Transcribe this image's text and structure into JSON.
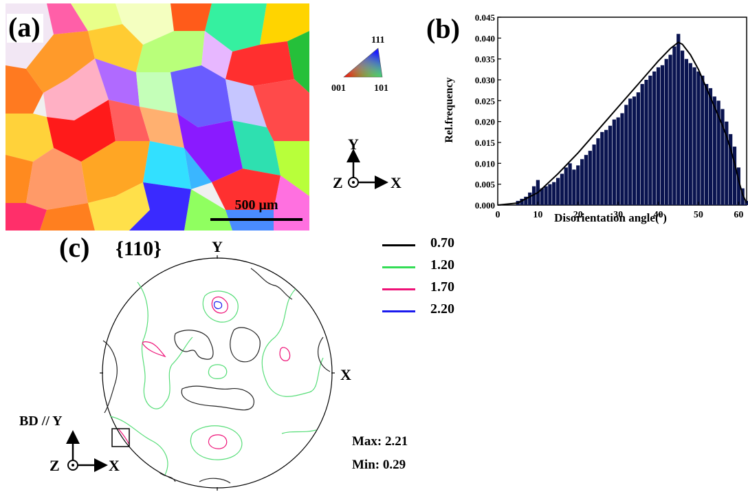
{
  "panel_a": {
    "label": "(a)",
    "scalebar": "500 μm",
    "ipf_key": {
      "top": "111",
      "left": "001",
      "right": "101"
    },
    "axes": {
      "y": "Y",
      "z": "Z",
      "x": "X"
    }
  },
  "panel_b": {
    "label": "(b)"
  },
  "panel_c": {
    "label": "(c)",
    "title": "{110}",
    "pole_labels": {
      "y": "Y",
      "x": "X"
    },
    "legend": [
      {
        "value": "0.70",
        "color": "#000000"
      },
      {
        "value": "1.20",
        "color": "#33dd55"
      },
      {
        "value": "1.70",
        "color": "#ee1177"
      },
      {
        "value": "2.20",
        "color": "#1a1aee"
      }
    ],
    "max": "Max: 2.21",
    "min": "Min: 0.29",
    "axes": {
      "bd": "BD // Y",
      "z": "Z",
      "x": "X"
    }
  },
  "chart_data": {
    "type": "bar",
    "xlabel": "Disorientation angle(º)",
    "ylabel": "Rel.frequency",
    "xlim": [
      0,
      62
    ],
    "ylim": [
      0,
      0.045
    ],
    "xticks": [
      "0",
      "10",
      "20",
      "30",
      "40",
      "50",
      "60"
    ],
    "yticks": [
      "0.000",
      "0.005",
      "0.010",
      "0.015",
      "0.020",
      "0.025",
      "0.030",
      "0.035",
      "0.040",
      "0.045"
    ],
    "bar_color": "#0a1450",
    "x": [
      5,
      6,
      7,
      8,
      9,
      10,
      11,
      12,
      13,
      14,
      15,
      16,
      17,
      18,
      19,
      20,
      21,
      22,
      23,
      24,
      25,
      26,
      27,
      28,
      29,
      30,
      31,
      32,
      33,
      34,
      35,
      36,
      37,
      38,
      39,
      40,
      41,
      42,
      43,
      44,
      45,
      46,
      47,
      48,
      49,
      50,
      51,
      52,
      53,
      54,
      55,
      56,
      57,
      58,
      59,
      60,
      61,
      62
    ],
    "values": [
      0.001,
      0.0015,
      0.002,
      0.003,
      0.0045,
      0.006,
      0.004,
      0.0045,
      0.005,
      0.0055,
      0.0065,
      0.0075,
      0.009,
      0.01,
      0.0085,
      0.0095,
      0.011,
      0.012,
      0.013,
      0.0145,
      0.016,
      0.0175,
      0.018,
      0.019,
      0.0205,
      0.021,
      0.022,
      0.024,
      0.0255,
      0.026,
      0.027,
      0.029,
      0.03,
      0.031,
      0.032,
      0.033,
      0.0335,
      0.035,
      0.036,
      0.038,
      0.041,
      0.037,
      0.035,
      0.034,
      0.033,
      0.032,
      0.031,
      0.029,
      0.028,
      0.026,
      0.025,
      0.023,
      0.02,
      0.017,
      0.014,
      0.009,
      0.004,
      0.001
    ],
    "fit": {
      "type": "line",
      "x": [
        0,
        5,
        10,
        15,
        20,
        25,
        30,
        35,
        40,
        43,
        45,
        46,
        48,
        50,
        52,
        54,
        56,
        57,
        58,
        59,
        60,
        61,
        62
      ],
      "y": [
        0,
        0.0005,
        0.003,
        0.0075,
        0.0125,
        0.018,
        0.0235,
        0.029,
        0.0345,
        0.0375,
        0.039,
        0.0385,
        0.036,
        0.0325,
        0.028,
        0.0235,
        0.019,
        0.0165,
        0.0135,
        0.01,
        0.006,
        0.0025,
        0.0005
      ]
    }
  }
}
